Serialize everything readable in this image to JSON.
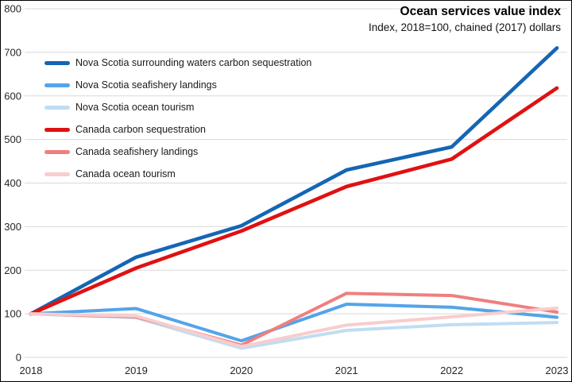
{
  "chart_data": {
    "type": "line",
    "title": "Ocean services value index",
    "subtitle": "Index, 2018=100, chained (2017) dollars",
    "x": [
      "2018",
      "2019",
      "2020",
      "2021",
      "2022",
      "2023"
    ],
    "y_ticks": [
      "0",
      "100",
      "200",
      "300",
      "400",
      "500",
      "600",
      "700",
      "800"
    ],
    "ylim": [
      0,
      800
    ],
    "grid": "horizontal",
    "grid_color": "#D9D9D9",
    "legend_position": "top-left-inside",
    "series": [
      {
        "name": "Nova Scotia surrounding waters carbon sequestration",
        "color": "#1566B4",
        "values": [
          100,
          230,
          302,
          430,
          483,
          710
        ]
      },
      {
        "name": "Nova Scotia seafishery landings",
        "color": "#54A4E9",
        "values": [
          100,
          112,
          38,
          122,
          115,
          92
        ]
      },
      {
        "name": "Nova Scotia ocean tourism",
        "color": "#BFDDF3",
        "values": [
          100,
          91,
          21,
          62,
          75,
          80
        ]
      },
      {
        "name": "Canada carbon sequestration",
        "color": "#E01111",
        "values": [
          100,
          205,
          290,
          392,
          455,
          618
        ]
      },
      {
        "name": "Canada seafishery landings",
        "color": "#EF7F7F",
        "values": [
          100,
          93,
          28,
          147,
          142,
          104
        ]
      },
      {
        "name": "Canada ocean tourism",
        "color": "#F8CDCD",
        "values": [
          100,
          95,
          25,
          74,
          93,
          113
        ]
      }
    ]
  }
}
